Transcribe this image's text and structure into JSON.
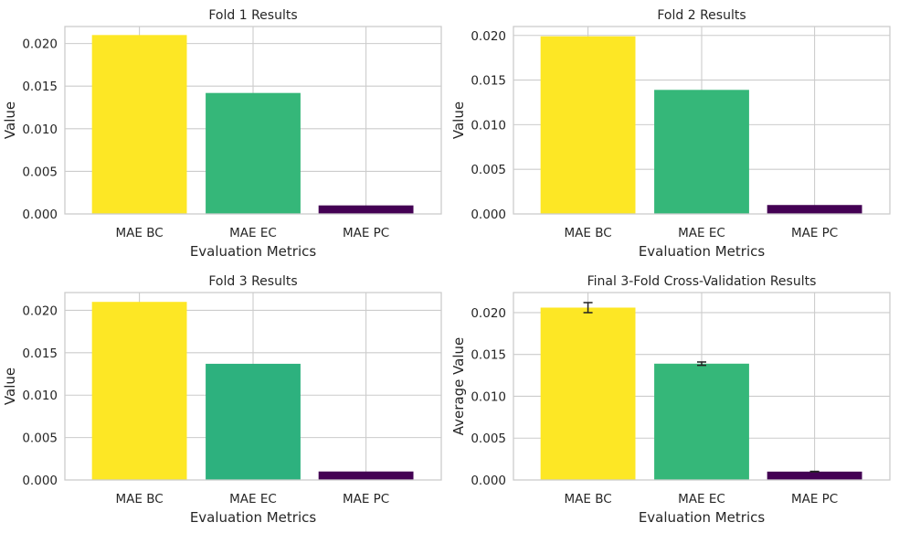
{
  "chart_data": [
    {
      "type": "bar",
      "title": "Fold 1 Results",
      "xlabel": "Evaluation Metrics",
      "ylabel": "Value",
      "categories": [
        "MAE BC",
        "MAE EC",
        "MAE PC"
      ],
      "values": [
        0.021,
        0.0142,
        0.001
      ],
      "colors": [
        "#fde725",
        "#35b779",
        "#440154"
      ],
      "ylim": [
        0,
        0.022
      ],
      "yticks": [
        "0.000",
        "0.005",
        "0.010",
        "0.015",
        "0.020"
      ],
      "grid": true
    },
    {
      "type": "bar",
      "title": "Fold 2 Results",
      "xlabel": "Evaluation Metrics",
      "ylabel": "Value",
      "categories": [
        "MAE BC",
        "MAE EC",
        "MAE PC"
      ],
      "values": [
        0.0199,
        0.0139,
        0.001
      ],
      "colors": [
        "#fde725",
        "#35b779",
        "#440154"
      ],
      "ylim": [
        0,
        0.021
      ],
      "yticks": [
        "0.000",
        "0.005",
        "0.010",
        "0.015",
        "0.020"
      ],
      "grid": true
    },
    {
      "type": "bar",
      "title": "Fold 3 Results",
      "xlabel": "Evaluation Metrics",
      "ylabel": "Value",
      "categories": [
        "MAE BC",
        "MAE EC",
        "MAE PC"
      ],
      "values": [
        0.021,
        0.0137,
        0.001
      ],
      "colors": [
        "#fde725",
        "#2db17e",
        "#440154"
      ],
      "ylim": [
        0,
        0.0221
      ],
      "yticks": [
        "0.000",
        "0.005",
        "0.010",
        "0.015",
        "0.020"
      ],
      "grid": true
    },
    {
      "type": "bar",
      "title": "Final 3-Fold Cross-Validation Results",
      "xlabel": "Evaluation Metrics",
      "ylabel": "Average Value",
      "categories": [
        "MAE BC",
        "MAE EC",
        "MAE PC"
      ],
      "values": [
        0.0206,
        0.0139,
        0.001
      ],
      "errors": [
        0.0006,
        0.0002,
        3e-05
      ],
      "colors": [
        "#fde725",
        "#35b779",
        "#440154"
      ],
      "ylim": [
        0,
        0.0224
      ],
      "yticks": [
        "0.000",
        "0.005",
        "0.010",
        "0.015",
        "0.020"
      ],
      "grid": true
    }
  ]
}
